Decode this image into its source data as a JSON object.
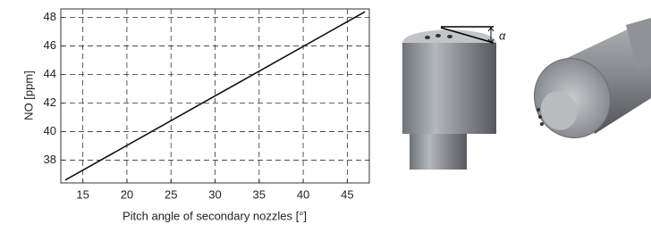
{
  "chart_data": {
    "type": "line",
    "x_label": "Pitch angle of secondary nozzles [°]",
    "y_label": "NO [ppm]",
    "x": [
      13,
      47
    ],
    "series": [
      {
        "color": "#111111",
        "values": [
          36.6,
          48.4
        ]
      }
    ],
    "xlim": [
      12.5,
      47.5
    ],
    "xticks": [
      15,
      20,
      25,
      30,
      35,
      40,
      45
    ],
    "ylim": [
      36.4,
      48.6
    ],
    "yticks": [
      38,
      40,
      42,
      44,
      46,
      48
    ],
    "grid": true,
    "annotation": "α"
  }
}
